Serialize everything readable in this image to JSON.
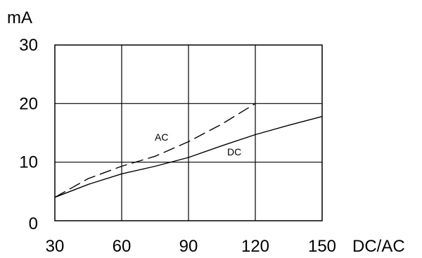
{
  "chart_data": {
    "type": "line",
    "xlabel": "DC/AC",
    "ylabel": "mA",
    "xlim": [
      30,
      150
    ],
    "ylim": [
      0,
      30
    ],
    "x_ticks": [
      30,
      60,
      90,
      120,
      150
    ],
    "y_ticks": [
      0,
      10,
      20,
      30
    ],
    "x_tick_labels": [
      "30",
      "60",
      "90",
      "120",
      "150"
    ],
    "y_tick_labels": [
      "0",
      "10",
      "20",
      "30"
    ],
    "grid": true,
    "legend": "none",
    "series": [
      {
        "name": "AC",
        "style": "dashed",
        "color": "#000000",
        "x": [
          30,
          45,
          60,
          75,
          90,
          105,
          120
        ],
        "y": [
          4,
          7.2,
          9.3,
          11,
          13.5,
          16.5,
          20
        ]
      },
      {
        "name": "DC",
        "style": "solid",
        "color": "#000000",
        "x": [
          30,
          45,
          60,
          75,
          90,
          105,
          120,
          135,
          150
        ],
        "y": [
          4,
          6.2,
          8,
          9.3,
          10.8,
          12.8,
          14.7,
          16.3,
          17.8
        ]
      }
    ]
  }
}
